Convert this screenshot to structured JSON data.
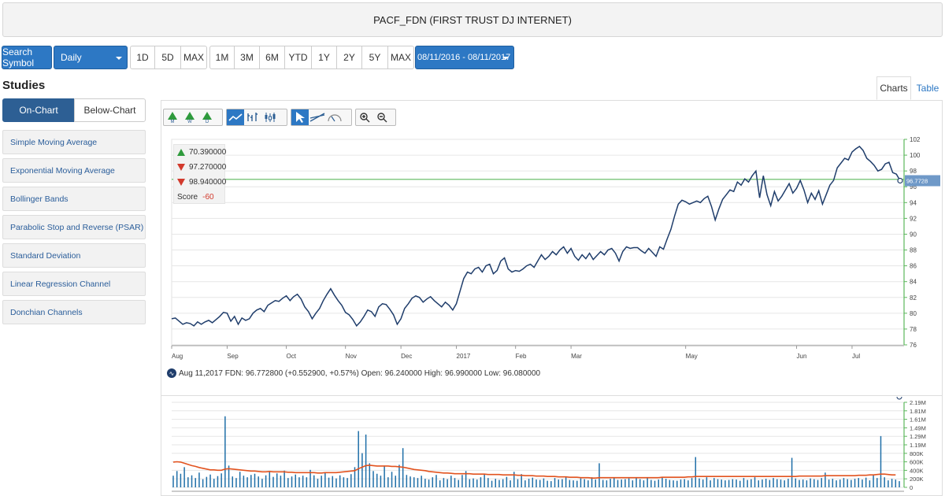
{
  "title": "PACF_FDN (FIRST TRUST DJ INTERNET)",
  "toolbar": {
    "search_symbol": "Search Symbol",
    "interval": "Daily",
    "ranges_short": [
      "1D",
      "5D",
      "MAX"
    ],
    "ranges_long": [
      "1M",
      "3M",
      "6M",
      "YTD",
      "1Y",
      "2Y",
      "5Y",
      "MAX"
    ],
    "date_range": "08/11/2016 - 08/11/2017"
  },
  "studies": {
    "title": "Studies",
    "tab_on_chart": "On-Chart",
    "tab_below_chart": "Below-Chart",
    "items": [
      "Simple Moving Average",
      "Exponential Moving Average",
      "Bollinger Bands",
      "Parabolic Stop and Reverse (PSAR)",
      "Standard Deviation",
      "Linear Regression Channel",
      "Donchian Channels"
    ]
  },
  "view_tabs": {
    "charts": "Charts",
    "table": "Table"
  },
  "tool_icons": [
    "monthly-signal-icon",
    "weekly-signal-icon",
    "daily-signal-icon",
    "line-chart-icon",
    "ohlc-chart-icon",
    "candlestick-chart-icon",
    "pointer-icon",
    "trendline-icon",
    "gauge-icon",
    "zoom-in-icon",
    "zoom-out-icon"
  ],
  "tool_labels": {
    "m": "M",
    "w": "W",
    "d": "D"
  },
  "signals": {
    "monthly": "70.390000",
    "weekly": "97.270000",
    "daily": "98.940000",
    "score_label": "Score",
    "score_value": "-60"
  },
  "quote": "Aug 11,2017 FDN: 96.772800 (+0.552900, +0.57%) Open: 96.240000 High: 96.990000 Low: 96.080000",
  "colors": {
    "price_line": "#1f3d6b",
    "volume_bar": "#1f6fa8",
    "volume_avg": "#e2531f",
    "signal_line": "#5cb85c",
    "accent": "#2d78c4"
  },
  "chart_data": [
    {
      "type": "line",
      "x_labels": [
        "Aug",
        "Sep",
        "Oct",
        "Nov",
        "Dec",
        "2017",
        "Feb",
        "Mar",
        "May",
        "Jun",
        "Jul"
      ],
      "x_label_positions": [
        0,
        15,
        31,
        47,
        62,
        77,
        93,
        108,
        139,
        169,
        184
      ],
      "ylim": [
        76,
        102
      ],
      "yticks": [
        76,
        78,
        80,
        82,
        84,
        86,
        88,
        90,
        92,
        94,
        96,
        98,
        100,
        102
      ],
      "last_value_label": "96.7728",
      "signal_line_value": 96.94,
      "series": [
        {
          "values": [
            79.3,
            79.4,
            79.0,
            78.6,
            78.8,
            78.7,
            78.4,
            78.9,
            78.6,
            78.9,
            79.1,
            78.8,
            79.2,
            79.6,
            80.1,
            80.0,
            79.0,
            79.6,
            78.6,
            79.4,
            79.1,
            79.3,
            80.0,
            80.4,
            80.6,
            80.2,
            81.0,
            81.3,
            81.6,
            81.5,
            81.9,
            82.2,
            81.6,
            82.1,
            82.4,
            81.8,
            80.8,
            80.2,
            79.3,
            80.0,
            80.6,
            81.6,
            82.4,
            83.1,
            82.3,
            81.6,
            81.0,
            80.1,
            79.8,
            79.2,
            78.4,
            78.9,
            79.6,
            80.4,
            80.2,
            79.6,
            80.8,
            81.2,
            81.1,
            80.5,
            79.8,
            78.6,
            79.3,
            80.6,
            81.2,
            81.9,
            82.2,
            82.0,
            81.4,
            81.8,
            82.1,
            81.6,
            81.2,
            80.8,
            81.4,
            81.0,
            80.4,
            81.2,
            82.8,
            84.4,
            85.2,
            85.0,
            85.6,
            85.8,
            85.2,
            86.0,
            86.2,
            85.0,
            85.4,
            86.6,
            87.0,
            85.6,
            85.2,
            85.4,
            85.3,
            85.6,
            86.0,
            86.2,
            85.8,
            86.6,
            87.4,
            86.8,
            87.2,
            87.8,
            87.4,
            88.0,
            88.4,
            87.6,
            88.2,
            87.2,
            86.7,
            87.4,
            86.9,
            87.6,
            86.8,
            87.3,
            87.8,
            87.4,
            88.0,
            88.2,
            87.6,
            86.6,
            87.8,
            88.4,
            88.2,
            88.3,
            88.3,
            87.9,
            87.6,
            88.2,
            87.7,
            87.2,
            88.4,
            88.1,
            89.4,
            90.6,
            92.3,
            93.8,
            94.3,
            94.1,
            93.8,
            94.0,
            94.2,
            94.0,
            94.5,
            94.8,
            93.5,
            91.8,
            93.2,
            94.4,
            95.0,
            95.6,
            95.4,
            96.6,
            96.2,
            97.0,
            96.6,
            97.4,
            98.0,
            94.6,
            97.4,
            95.0,
            93.6,
            95.4,
            94.2,
            94.8,
            95.6,
            96.4,
            95.2,
            95.8,
            96.8,
            95.6,
            94.0,
            95.2,
            94.4,
            95.5,
            93.8,
            95.0,
            96.2,
            96.8,
            98.4,
            99.0,
            99.6,
            99.4,
            100.4,
            100.8,
            101.1,
            100.6,
            99.6,
            99.2,
            98.7,
            98.0,
            98.2,
            98.9,
            99.1,
            97.8,
            97.6,
            96.77
          ]
        }
      ]
    },
    {
      "type": "bar",
      "title": "",
      "ylim": [
        0,
        2190000
      ],
      "ytick_labels": [
        "0",
        "200K",
        "400K",
        "600K",
        "800K",
        "1.19M",
        "1.29M",
        "1.49M",
        "1.61M",
        "1.81M",
        "2.19M"
      ],
      "series": [
        {
          "values": [
            300000,
            420000,
            350000,
            520000,
            260000,
            310000,
            240000,
            380000,
            210000,
            270000,
            330000,
            220000,
            290000,
            360000,
            1830000,
            560000,
            280000,
            240000,
            400000,
            300000,
            260000,
            320000,
            350000,
            280000,
            220000,
            310000,
            400000,
            270000,
            360000,
            300000,
            430000,
            240000,
            280000,
            330000,
            260000,
            300000,
            260000,
            450000,
            310000,
            220000,
            300000,
            380000,
            250000,
            290000,
            230000,
            310000,
            260000,
            240000,
            340000,
            520000,
            1450000,
            880000,
            1360000,
            620000,
            420000,
            350000,
            300000,
            560000,
            260000,
            400000,
            300000,
            580000,
            1010000,
            320000,
            280000,
            260000,
            240000,
            300000,
            220000,
            200000,
            260000,
            320000,
            180000,
            240000,
            210000,
            300000,
            240000,
            190000,
            320000,
            420000,
            210000,
            230000,
            200000,
            260000,
            340000,
            240000,
            170000,
            220000,
            190000,
            210000,
            270000,
            180000,
            400000,
            210000,
            340000,
            180000,
            220000,
            250000,
            200000,
            190000,
            230000,
            170000,
            160000,
            240000,
            200000,
            210000,
            260000,
            190000,
            180000,
            170000,
            230000,
            210000,
            180000,
            260000,
            200000,
            620000,
            190000,
            180000,
            220000,
            240000,
            190000,
            200000,
            210000,
            230000,
            180000,
            260000,
            210000,
            180000,
            240000,
            190000,
            170000,
            200000,
            250000,
            220000,
            190000,
            180000,
            170000,
            200000,
            210000,
            180000,
            240000,
            780000,
            230000,
            200000,
            260000,
            180000,
            240000,
            210000,
            200000,
            180000,
            190000,
            210000,
            200000,
            170000,
            240000,
            190000,
            210000,
            260000,
            180000,
            200000,
            220000,
            190000,
            240000,
            210000,
            200000,
            180000,
            220000,
            760000,
            230000,
            190000,
            200000,
            180000,
            230000,
            210000,
            190000,
            240000,
            380000,
            200000,
            220000,
            180000,
            200000,
            240000,
            210000,
            190000,
            220000,
            240000,
            200000,
            250000,
            180000,
            320000,
            240000,
            1320000,
            260000,
            180000,
            220000,
            200000,
            160000
          ]
        },
        {
          "values": [
            650000,
            660000,
            650000,
            620000,
            590000,
            560000,
            540000,
            510000,
            490000,
            470000,
            450000,
            450000,
            440000,
            440000,
            470000,
            480000,
            470000,
            460000,
            450000,
            440000,
            430000,
            420000,
            420000,
            410000,
            400000,
            400000,
            410000,
            400000,
            400000,
            400000,
            400000,
            390000,
            390000,
            380000,
            380000,
            380000,
            380000,
            380000,
            380000,
            370000,
            370000,
            380000,
            380000,
            380000,
            380000,
            390000,
            400000,
            410000,
            420000,
            430000,
            480000,
            520000,
            560000,
            570000,
            560000,
            550000,
            550000,
            550000,
            550000,
            540000,
            540000,
            530000,
            520000,
            500000,
            480000,
            460000,
            450000,
            440000,
            430000,
            410000,
            400000,
            390000,
            380000,
            370000,
            370000,
            360000,
            350000,
            350000,
            350000,
            350000,
            350000,
            340000,
            340000,
            340000,
            340000,
            330000,
            330000,
            330000,
            330000,
            320000,
            320000,
            320000,
            320000,
            310000,
            310000,
            300000,
            300000,
            300000,
            290000,
            290000,
            290000,
            280000,
            280000,
            280000,
            270000,
            270000,
            270000,
            260000,
            260000,
            260000,
            250000,
            250000,
            250000,
            240000,
            240000,
            250000,
            250000,
            250000,
            250000,
            250000,
            250000,
            250000,
            250000,
            250000,
            250000,
            250000,
            250000,
            250000,
            250000,
            250000,
            250000,
            250000,
            260000,
            260000,
            260000,
            260000,
            260000,
            260000,
            260000,
            270000,
            270000,
            280000,
            280000,
            280000,
            280000,
            280000,
            280000,
            280000,
            280000,
            280000,
            280000,
            280000,
            280000,
            280000,
            280000,
            280000,
            280000,
            280000,
            280000,
            280000,
            280000,
            280000,
            280000,
            280000,
            280000,
            280000,
            280000,
            280000,
            280000,
            290000,
            290000,
            290000,
            290000,
            290000,
            290000,
            290000,
            300000,
            300000,
            300000,
            300000,
            300000,
            300000,
            300000,
            300000,
            300000,
            310000,
            310000,
            310000,
            320000,
            320000,
            330000,
            340000,
            340000,
            330000,
            320000,
            320000
          ]
        }
      ]
    }
  ]
}
